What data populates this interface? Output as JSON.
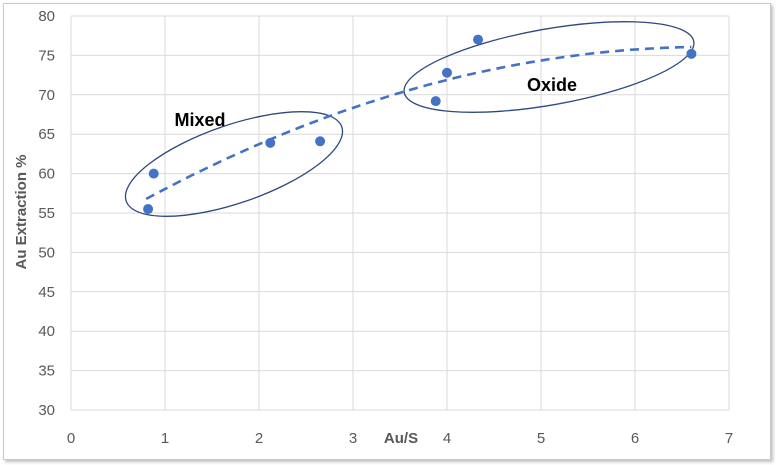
{
  "chart_data": {
    "type": "scatter",
    "title": "",
    "xlabel": "Au/S",
    "ylabel": "Au Extraction %",
    "xlim": [
      0,
      7
    ],
    "ylim": [
      30,
      80
    ],
    "xticks": [
      0,
      1,
      2,
      3,
      4,
      5,
      6,
      7
    ],
    "yticks": [
      30,
      35,
      40,
      45,
      50,
      55,
      60,
      65,
      70,
      75,
      80
    ],
    "grid": true,
    "legend": "none",
    "marker_color": "#4472C4",
    "trendline": {
      "style": "dashed",
      "color": "#4472C4",
      "type": "polynomial",
      "x_range": [
        0.8,
        6.6
      ]
    },
    "points": [
      {
        "x": 0.82,
        "y": 55.5
      },
      {
        "x": 0.88,
        "y": 60.0
      },
      {
        "x": 2.12,
        "y": 63.9
      },
      {
        "x": 2.65,
        "y": 64.1
      },
      {
        "x": 3.88,
        "y": 69.2
      },
      {
        "x": 4.0,
        "y": 72.8
      },
      {
        "x": 4.33,
        "y": 77.0
      },
      {
        "x": 6.6,
        "y": 75.2
      }
    ],
    "annotations": [
      {
        "text": "Mixed"
      },
      {
        "text": "Oxide"
      }
    ]
  }
}
